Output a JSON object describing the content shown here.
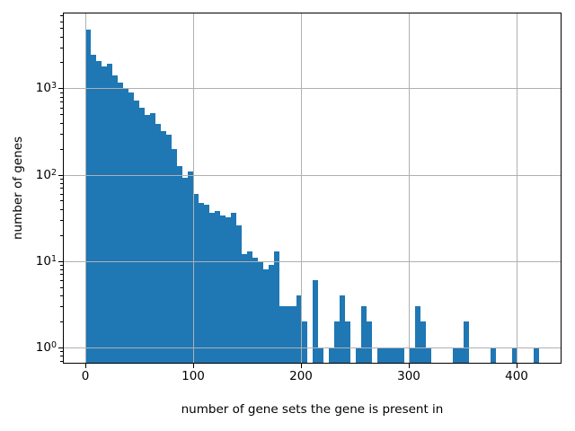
{
  "chart_data": {
    "type": "bar",
    "subtype": "histogram",
    "title": "",
    "xlabel": "number of gene sets the gene is present in",
    "ylabel": "number of genes",
    "yscale": "log",
    "grid": "both",
    "bar_color": "#1f77b4",
    "grid_color": "#b0b0b0",
    "bin_start": 0,
    "bin_width": 5.0119,
    "counts": [
      4800,
      2450,
      2060,
      1800,
      1950,
      1400,
      1170,
      980,
      890,
      715,
      595,
      490,
      515,
      385,
      320,
      290,
      200,
      125,
      92,
      110,
      60,
      47,
      45,
      36,
      38,
      34,
      32,
      36,
      26,
      12,
      13,
      11,
      10,
      8,
      9,
      13,
      3,
      3,
      3,
      4,
      2,
      0,
      6,
      1,
      0,
      1,
      2,
      4,
      2,
      0,
      1,
      3,
      2,
      0,
      1,
      1,
      1,
      1,
      1,
      0,
      1,
      3,
      2,
      1,
      0,
      0,
      0,
      0,
      1,
      1,
      2,
      0,
      0,
      0,
      0,
      1,
      0,
      0,
      0,
      1,
      0,
      0,
      0,
      1
    ],
    "x_ticks": [
      0,
      100,
      200,
      300,
      400
    ],
    "y_tick_exponents": [
      0,
      1,
      2,
      3
    ],
    "xlim": [
      -21.05,
      442.05
    ],
    "ylim": [
      0.645,
      7550
    ]
  }
}
